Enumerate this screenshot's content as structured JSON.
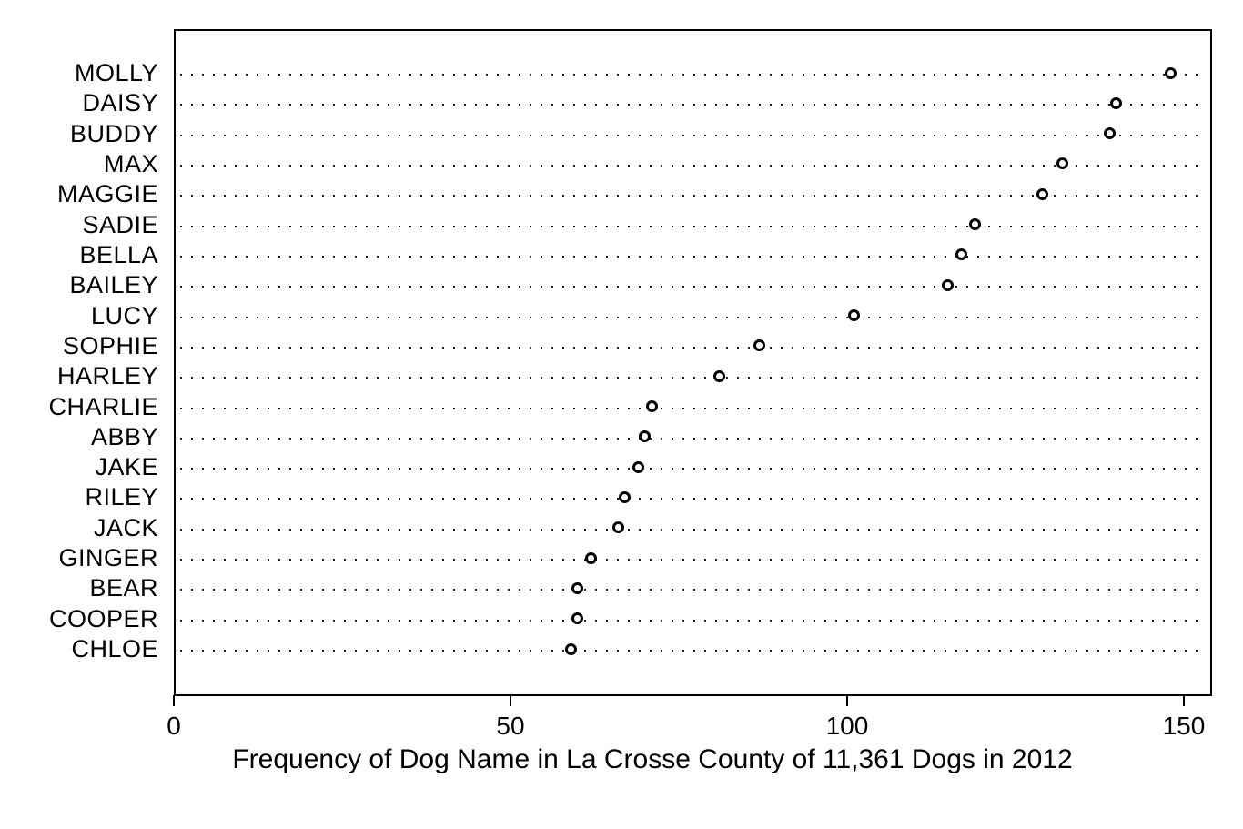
{
  "chart_data": {
    "type": "scatter",
    "variant": "horizontal-dot-plot",
    "title": "",
    "xlabel": "Frequency of Dog Name in La Crosse County of 11,361 Dogs in 2012",
    "ylabel": "",
    "categories": [
      "MOLLY",
      "DAISY",
      "BUDDY",
      "MAX",
      "MAGGIE",
      "SADIE",
      "BELLA",
      "BAILEY",
      "LUCY",
      "SOPHIE",
      "HARLEY",
      "CHARLIE",
      "ABBY",
      "JAKE",
      "RILEY",
      "JACK",
      "GINGER",
      "BEAR",
      "COOPER",
      "CHLOE"
    ],
    "values": [
      148,
      140,
      139,
      132,
      129,
      119,
      117,
      115,
      101,
      87,
      81,
      71,
      70,
      69,
      67,
      66,
      62,
      60,
      60,
      59
    ],
    "x_ticks": [
      "0",
      "50",
      "100",
      "150"
    ],
    "x_tick_values": [
      0,
      50,
      100,
      150
    ],
    "xlim": [
      0,
      154.2
    ],
    "grid": "dotted-row-leader-lines",
    "legend": "none",
    "marker": {
      "shape": "hollow-circle",
      "stroke": "#000000",
      "fill": "#ffffff"
    },
    "colors": {
      "foreground": "#000000",
      "background": "#ffffff",
      "leader_dots": "#1f1f1f"
    }
  }
}
